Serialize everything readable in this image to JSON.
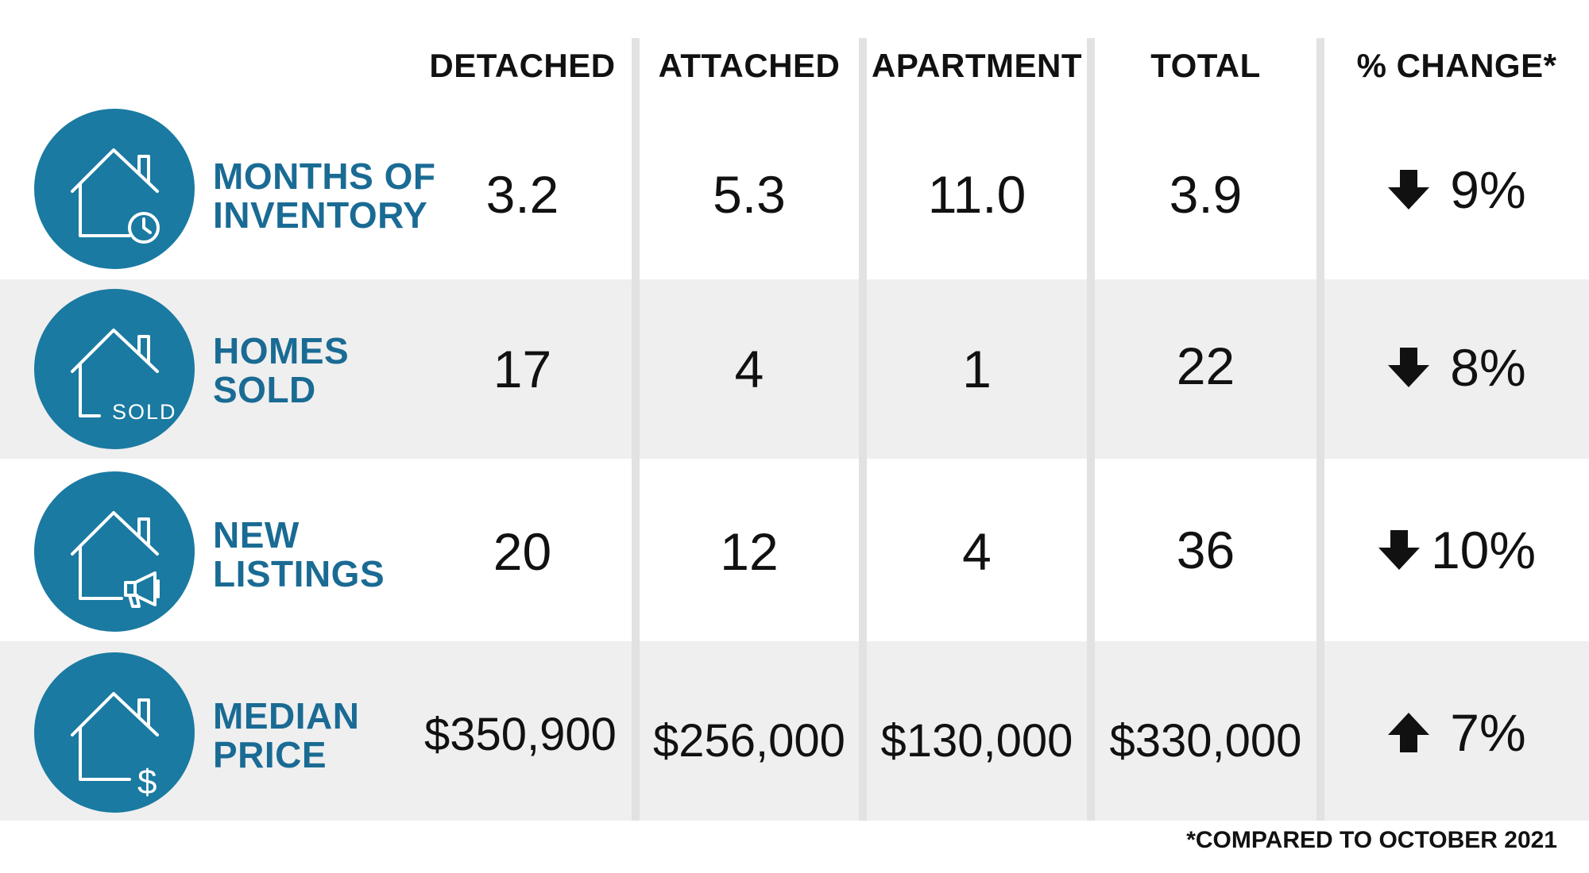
{
  "columns": {
    "detached": "DETACHED",
    "attached": "ATTACHED",
    "apartment": "APARTMENT",
    "total": "TOTAL",
    "change": "% CHANGE*"
  },
  "rows": [
    {
      "icon": "house-clock-icon",
      "label_line1": "MONTHS OF",
      "label_line2": "INVENTORY",
      "detached": "3.2",
      "attached": "5.3",
      "apartment": "11.0",
      "total": "3.9",
      "change_direction": "down",
      "change": "9%"
    },
    {
      "icon": "house-sold-icon",
      "icon_text": "SOLD",
      "label_line1": "HOMES",
      "label_line2": "SOLD",
      "detached": "17",
      "attached": "4",
      "apartment": "1",
      "total": "22",
      "change_direction": "down",
      "change": "8%"
    },
    {
      "icon": "house-megaphone-icon",
      "label_line1": "NEW",
      "label_line2": "LISTINGS",
      "detached": "20",
      "attached": "12",
      "apartment": "4",
      "total": "36",
      "change_direction": "down",
      "change": "10%"
    },
    {
      "icon": "house-dollar-icon",
      "label_line1": "MEDIAN",
      "label_line2": "PRICE",
      "detached": "$350,900",
      "attached": "$256,000",
      "apartment": "$130,000",
      "total": "$330,000",
      "change_direction": "up",
      "change": "7%"
    }
  ],
  "footnote": "*COMPARED TO OCTOBER 2021",
  "colors": {
    "icon_circle": "#1a7aa1",
    "label_text": "#1a6b94",
    "row_shade": "#efefef",
    "divider": "#e2e2e2"
  }
}
